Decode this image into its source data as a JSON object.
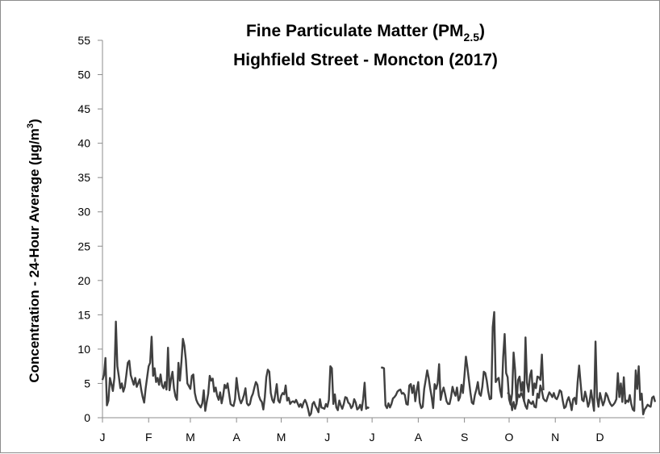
{
  "chart_data": {
    "type": "line",
    "title_line1": "Fine Particulate Matter (PM",
    "title_line1_sub": "2.5",
    "title_line1_end": ")",
    "title_line2": "Highfield Street - Moncton (2017)",
    "xlabel": "",
    "ylabel": "Concentration - 24-Hour Average (µg/m",
    "ylabel_sup": "3",
    "ylabel_end": ")",
    "ylim": [
      0,
      55
    ],
    "yticks": [
      "0",
      "5",
      "10",
      "15",
      "20",
      "25",
      "30",
      "35",
      "40",
      "45",
      "50",
      "55"
    ],
    "xlim": [
      1,
      365
    ],
    "xtick_positions": [
      1,
      32,
      60,
      91,
      121,
      152,
      182,
      213,
      244,
      274,
      305,
      335
    ],
    "xtick_labels": [
      "J",
      "F",
      "M",
      "A",
      "M",
      "J",
      "J",
      "A",
      "S",
      "O",
      "N",
      "D"
    ],
    "grid": false,
    "legend": "none",
    "line_color": "#404040",
    "segments": [
      {
        "start_day": 1,
        "values": [
          5.5,
          6.2,
          8.7,
          1.8,
          2.5,
          5.8,
          4.9,
          3.9,
          5.8,
          14.0,
          7.5,
          6.0,
          4.3,
          5.0,
          3.8,
          4.5,
          6.2,
          8.0,
          8.3,
          6.2,
          5.5,
          4.8,
          5.8,
          4.5,
          5.0,
          5.6,
          4.1,
          3.0,
          2.2,
          4.3,
          5.9,
          7.5,
          8.0,
          11.8,
          6.1,
          7.2,
          5.2,
          5.8,
          4.8,
          6.3,
          4.7,
          4.3,
          5.2,
          4.1,
          10.2,
          4.0,
          5.6,
          6.7,
          4.3,
          3.1,
          2.6,
          8.0,
          5.4,
          8.1,
          11.5,
          10.5,
          8.4,
          5.0,
          4.6,
          4.2,
          6.1,
          6.3,
          3.6,
          2.6,
          2.1,
          1.8,
          1.5,
          2.1,
          4.0,
          1.0,
          2.3,
          3.5,
          6.1,
          5.4,
          5.7,
          3.8,
          4.4,
          3.2,
          2.6,
          3.7,
          2.1,
          3.2,
          4.8,
          4.3,
          5.0,
          3.5,
          2.0,
          1.8,
          1.7,
          2.7,
          5.8,
          4.0,
          2.7,
          2.1,
          2.6,
          3.3,
          4.3,
          2.1,
          1.8,
          2.0,
          3.0,
          3.5,
          4.4,
          5.2,
          4.8,
          3.2,
          2.6,
          2.3,
          1.2,
          3.0,
          5.9,
          7.0,
          6.7,
          3.6,
          2.6,
          2.2,
          3.4,
          4.9,
          2.5,
          2.2,
          3.2,
          3.6,
          3.4,
          4.7,
          2.5,
          2.9,
          2.0,
          2.3,
          2.4,
          2.2,
          2.6,
          2.1,
          1.6,
          2.0,
          1.5,
          2.2,
          2.6,
          2.1,
          1.3,
          0.3,
          0.6,
          2.0,
          2.3,
          1.7,
          1.3,
          0.8,
          2.7,
          1.5,
          1.4,
          1.3,
          2.0,
          1.6,
          2.6,
          7.5,
          7.2,
          2.0,
          3.4,
          1.5,
          1.1,
          2.5,
          1.8,
          1.3,
          2.0,
          3.0,
          2.9,
          2.2,
          2.0,
          1.4,
          1.7,
          2.7,
          2.2,
          1.2,
          1.4,
          1.9,
          1.1,
          2.7,
          5.1,
          1.3,
          1.5,
          1.4
        ]
      },
      {
        "start_day": 188,
        "values": [
          7.3,
          7.3,
          7.2,
          1.8,
          1.4,
          2.1,
          1.5,
          2.0,
          2.8,
          3.0,
          3.3,
          3.8,
          4.0,
          4.1,
          3.5,
          3.6,
          3.3,
          2.0,
          1.9,
          4.7,
          4.9,
          3.6,
          4.7,
          2.4,
          4.0,
          5.2,
          2.2,
          1.4,
          1.6,
          4.2,
          5.5,
          6.9,
          5.8,
          4.3,
          3.0,
          1.4,
          4.9,
          4.2,
          5.0,
          7.8,
          2.6,
          3.7,
          4.4,
          3.5,
          2.4,
          2.0,
          2.0,
          3.0,
          4.5,
          3.7,
          3.2,
          4.4,
          2.5,
          3.0,
          4.8,
          3.6,
          6.1,
          8.9,
          7.3,
          5.5,
          3.7,
          2.2,
          2.0,
          3.3,
          4.1,
          5.2,
          3.5,
          3.2,
          4.5,
          6.7,
          6.5,
          5.4,
          3.8,
          2.7,
          2.8,
          13.2,
          15.4,
          5.2,
          5.6,
          5.8,
          4.0,
          3.0,
          8.8,
          12.2,
          6.5,
          5.9,
          2.7,
          1.9,
          3.5,
          9.5,
          7.0,
          2.0,
          5.5,
          6.0,
          3.9,
          5.2,
          2.4,
          11.7,
          5.1,
          3.8,
          6.1,
          6.9,
          3.3,
          5.0,
          4.3,
          6.0,
          5.9,
          5.5,
          9.2,
          4.0
        ]
      },
      {
        "start_day": 273,
        "values": [
          3.7,
          3.4,
          2.8,
          1.1,
          2.3,
          1.3,
          2.1,
          3.4,
          3.0,
          3.6,
          3.2,
          2.5,
          1.7,
          1.3,
          2.6,
          2.2,
          2.0,
          2.4,
          1.6,
          1.5,
          3.5,
          2.9,
          4.7,
          3.9,
          2.8,
          2.5,
          2.4,
          3.1,
          3.7,
          3.4,
          3.0,
          3.6,
          2.9,
          2.7,
          3.2,
          4.0,
          3.8,
          2.5,
          1.4,
          1.6,
          2.5,
          3.0,
          2.2,
          1.1,
          2.7,
          2.9,
          2.0,
          5.2,
          7.6,
          5.0,
          2.6,
          2.4,
          3.8,
          2.9,
          1.6,
          2.3,
          4.0,
          2.5,
          1.0,
          11.1,
          3.0,
          1.6,
          3.6,
          2.7,
          1.8,
          2.4,
          3.6,
          3.2,
          2.5,
          2.0,
          1.7,
          1.9,
          2.2,
          2.7,
          6.5,
          3.0,
          5.0,
          2.3,
          5.9,
          2.1,
          2.5,
          2.3,
          3.3,
          2.0,
          1.2,
          1.0,
          6.9,
          4.2,
          7.5,
          2.6,
          3.5,
          0.5,
          1.2,
          1.5,
          1.9,
          1.7,
          1.6,
          2.9,
          3.1,
          2.3
        ]
      }
    ]
  }
}
